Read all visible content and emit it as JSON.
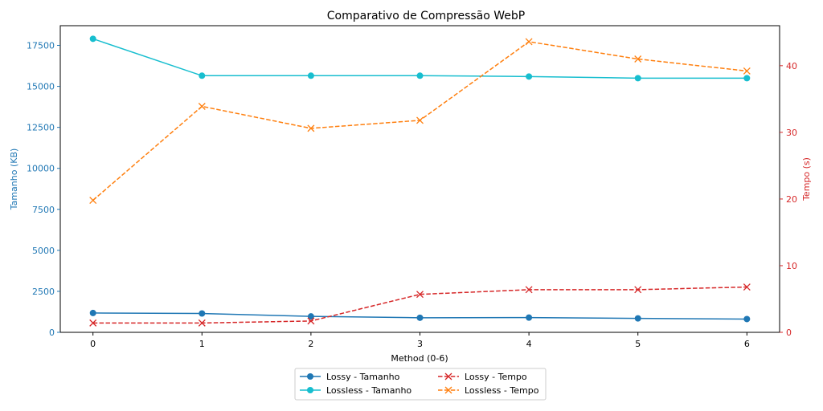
{
  "chart_data": {
    "type": "line",
    "title": "Comparativo de Compressão WebP",
    "xlabel": "Method (0-6)",
    "ylabel_left": "Tamanho (KB)",
    "ylabel_right": "Tempo (s)",
    "x": [
      0,
      1,
      2,
      3,
      4,
      5,
      6
    ],
    "x_ticks": [
      "0",
      "1",
      "2",
      "3",
      "4",
      "5",
      "6"
    ],
    "xlim": [
      -0.3,
      6.3
    ],
    "ylim_left": [
      0,
      18700
    ],
    "yticks_left": [
      "0",
      "2500",
      "5000",
      "7500",
      "10000",
      "12500",
      "15000",
      "17500"
    ],
    "ylim_right": [
      0,
      46
    ],
    "yticks_right": [
      "0",
      "10",
      "20",
      "30",
      "40"
    ],
    "grid": false,
    "legend_position": "bottom-center",
    "colors": {
      "left_axis": "#1f77b4",
      "right_axis": "#d62728",
      "lossy_size": "#1f77b4",
      "lossless_size": "#17becf",
      "lossy_time": "#d62728",
      "lossless_time": "#ff7f0e"
    },
    "series": [
      {
        "name": "Lossy - Tamanho",
        "axis": "left",
        "style": "solid",
        "marker": "circle",
        "color": "#1f77b4",
        "values": [
          1180,
          1150,
          970,
          890,
          900,
          850,
          810
        ]
      },
      {
        "name": "Lossless - Tamanho",
        "axis": "left",
        "style": "solid",
        "marker": "circle",
        "color": "#17becf",
        "values": [
          17900,
          15650,
          15650,
          15650,
          15600,
          15500,
          15500
        ]
      },
      {
        "name": "Lossy - Tempo",
        "axis": "right",
        "style": "dashed",
        "marker": "x",
        "color": "#d62728",
        "values": [
          1.4,
          1.4,
          1.7,
          5.7,
          6.4,
          6.4,
          6.8
        ]
      },
      {
        "name": "Lossless - Tempo",
        "axis": "right",
        "style": "dashed",
        "marker": "x",
        "color": "#ff7f0e",
        "values": [
          19.8,
          33.9,
          30.6,
          31.8,
          43.6,
          41.0,
          39.2
        ]
      }
    ]
  }
}
